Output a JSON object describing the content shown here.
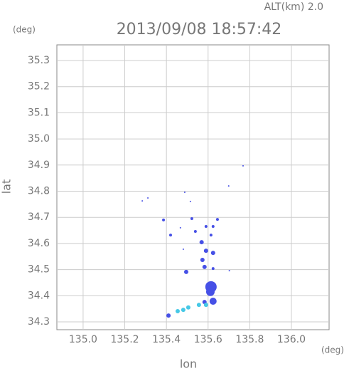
{
  "chart_data": {
    "type": "scatter",
    "title": "2013/09/08 18:57:42",
    "subtitle": "ALT(km) 2.0",
    "x_label": "lon",
    "y_label": "lat",
    "x_unit": "(deg)",
    "y_unit": "(deg)",
    "xlim": [
      134.874,
      136.181
    ],
    "ylim": [
      34.27,
      35.36
    ],
    "xticks": [
      {
        "value": 135.0,
        "label": "135.0"
      },
      135.2,
      135.4,
      135.6,
      135.8,
      {
        "value": 136.0,
        "label": "136.0"
      }
    ],
    "yticks": [
      34.3,
      34.4,
      34.5,
      34.6,
      34.7,
      34.8,
      34.9,
      {
        "value": 35.0,
        "label": "35.0"
      },
      35.1,
      35.2,
      35.3
    ],
    "grid": true,
    "series": [
      {
        "color": "#4650e6",
        "x": [
          135.284,
          135.311,
          135.488,
          135.515,
          135.699,
          135.768,
          135.386,
          135.42,
          135.467,
          135.522,
          135.539,
          135.481,
          135.59,
          135.614,
          135.645,
          135.624,
          135.569,
          135.59,
          135.624,
          135.573,
          135.583,
          135.495,
          135.624,
          135.614,
          135.611,
          135.624,
          135.583,
          135.41,
          135.702
        ],
        "y": [
          34.763,
          34.774,
          34.796,
          34.761,
          34.82,
          34.897,
          34.69,
          34.632,
          34.66,
          34.695,
          34.646,
          34.578,
          34.665,
          34.632,
          34.692,
          34.665,
          34.605,
          34.572,
          34.564,
          34.537,
          34.51,
          34.491,
          34.504,
          34.434,
          34.415,
          34.379,
          34.376,
          34.324,
          34.496
        ],
        "sizes": [
          1,
          1,
          1,
          1,
          1,
          1,
          2,
          2,
          1,
          2,
          2,
          1,
          2,
          2,
          2,
          2,
          3,
          3,
          3,
          3,
          3,
          3,
          2,
          8,
          6,
          5,
          3,
          3,
          1
        ]
      },
      {
        "color": "#46c8e6",
        "x": [
          135.556,
          135.505,
          135.481,
          135.454,
          135.59
        ],
        "y": [
          34.365,
          34.355,
          34.346,
          34.341,
          34.365
        ],
        "sizes": [
          3,
          3,
          3,
          3,
          3
        ]
      }
    ]
  }
}
